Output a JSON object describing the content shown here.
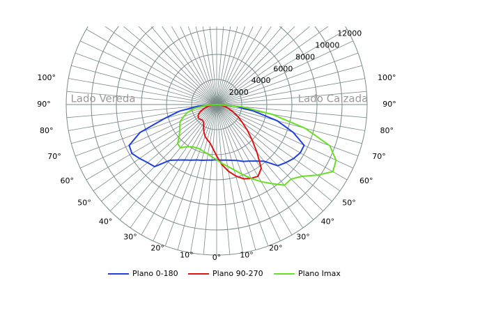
{
  "chart_data": {
    "type": "polar",
    "annotations": [
      "Lado Vereda",
      "Lado Calzada"
    ],
    "angles": [
      -90,
      -85,
      -80,
      -75,
      -70,
      -65,
      -60,
      -55,
      -50,
      -45,
      -40,
      -35,
      -30,
      -25,
      -20,
      -15,
      -10,
      -5,
      0,
      5,
      10,
      15,
      20,
      25,
      30,
      35,
      40,
      45,
      50,
      55,
      60,
      65,
      70,
      75,
      80,
      85,
      90
    ],
    "series": [
      {
        "name": "Plano 0-180",
        "color": "#1f3fe0",
        "values": [
          0,
          1500,
          3000,
          4300,
          6500,
          7700,
          7800,
          7500,
          7200,
          7000,
          5800,
          5400,
          5100,
          4900,
          4700,
          4600,
          4500,
          4450,
          4400,
          4450,
          4500,
          4600,
          4750,
          5000,
          5200,
          5500,
          5900,
          6900,
          7200,
          7500,
          7700,
          7700,
          6500,
          5000,
          3000,
          1500,
          0
        ]
      },
      {
        "name": "Plano 90-270",
        "color": "#e01010",
        "values": [
          0,
          300,
          600,
          900,
          1200,
          1500,
          1700,
          1800,
          1800,
          1700,
          1700,
          1800,
          2100,
          2400,
          2700,
          2900,
          3100,
          3500,
          4100,
          4800,
          5400,
          5900,
          6300,
          6500,
          6600,
          6200,
          5000,
          4000,
          3200,
          2500,
          2000,
          1500,
          1100,
          800,
          500,
          250,
          0
        ]
      },
      {
        "name": "Plano Imax",
        "color": "#66e020",
        "values": [
          0,
          900,
          1800,
          2400,
          2800,
          3200,
          3400,
          3600,
          3900,
          4400,
          4500,
          4100,
          3900,
          3800,
          3800,
          3900,
          4000,
          4200,
          4400,
          4700,
          5000,
          5400,
          5900,
          6500,
          7100,
          7700,
          8400,
          8400,
          8900,
          9800,
          10700,
          10500,
          9600,
          7300,
          4500,
          2000,
          0
        ]
      }
    ],
    "rlim": [
      0,
      12000
    ],
    "rticks": [
      2000,
      4000,
      6000,
      8000,
      10000,
      12000
    ],
    "xticks": [
      {
        "value": -100,
        "label": "100°"
      },
      {
        "value": -90,
        "label": "90°"
      },
      {
        "value": -80,
        "label": "80°"
      },
      {
        "value": -70,
        "label": "70°"
      },
      {
        "value": -60,
        "label": "60°"
      },
      {
        "value": -50,
        "label": "50°"
      },
      {
        "value": -40,
        "label": "40°"
      },
      {
        "value": -30,
        "label": "30°"
      },
      {
        "value": -20,
        "label": "20°"
      },
      {
        "value": -10,
        "label": "10°"
      },
      {
        "value": 0,
        "label": "0°"
      },
      {
        "value": 10,
        "label": "10°"
      },
      {
        "value": 20,
        "label": "20°"
      },
      {
        "value": 30,
        "label": "30°"
      },
      {
        "value": 40,
        "label": "40°"
      },
      {
        "value": 50,
        "label": "50°"
      },
      {
        "value": 60,
        "label": "60°"
      },
      {
        "value": 70,
        "label": "70°"
      },
      {
        "value": 80,
        "label": "80°"
      },
      {
        "value": 90,
        "label": "90°"
      },
      {
        "value": 100,
        "label": "100°"
      }
    ]
  }
}
